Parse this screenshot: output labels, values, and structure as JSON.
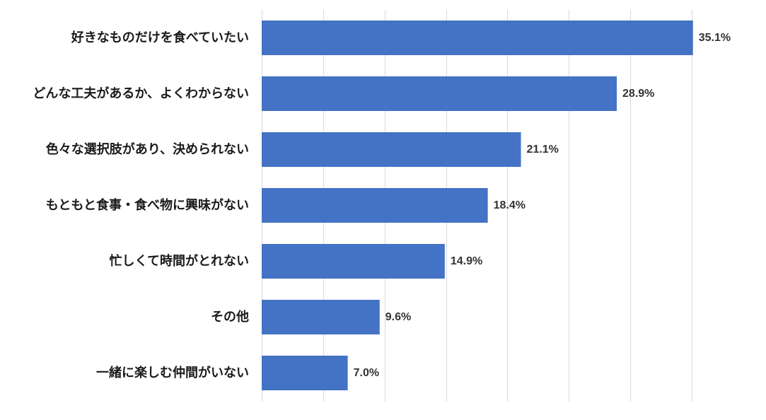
{
  "chart_data": {
    "type": "bar",
    "orientation": "horizontal",
    "title": "",
    "xlabel": "",
    "ylabel": "",
    "categories": [
      "好きなものだけを食べていたい",
      "どんな工夫があるか、よくわからない",
      "色々な選択肢があり、決められない",
      "もともと食事・食べ物に興味がない",
      "忙しくて時間がとれない",
      "その他",
      "一緒に楽しむ仲間がいない"
    ],
    "values": [
      35.1,
      28.9,
      21.1,
      18.4,
      14.9,
      9.6,
      7.0
    ],
    "value_labels": [
      "35.1%",
      "28.9%",
      "21.1%",
      "18.4%",
      "14.9%",
      "9.6%",
      "7.0%"
    ],
    "xlim": [
      0,
      35
    ],
    "gridline_step": 5,
    "grid": true,
    "legend": "none",
    "bar_color": "#4472C4",
    "gridline_color": "#d9d9d9"
  }
}
